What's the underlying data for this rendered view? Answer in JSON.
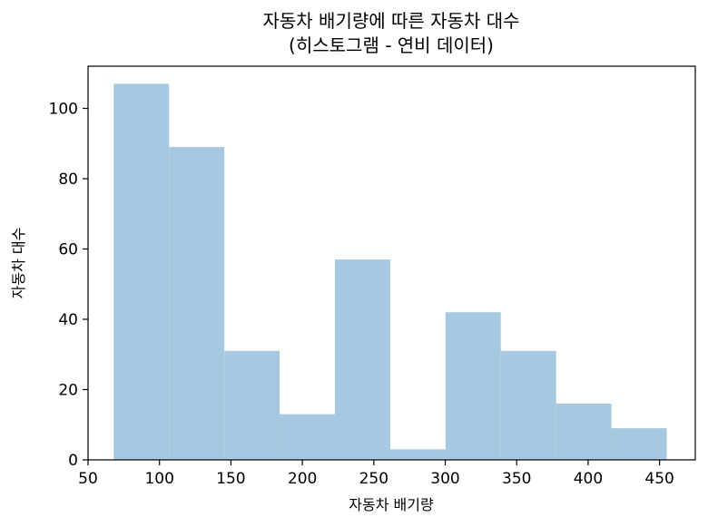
{
  "chart_data": {
    "type": "bar",
    "subtype": "histogram",
    "title_line1": "자동차 배기량에 따른 자동차 대수",
    "title_line2": "(히스토그램 - 연비 데이터)",
    "xlabel": "자동차 배기량",
    "ylabel": "자동차 대수",
    "bin_edges": [
      68,
      106.7,
      145.4,
      184.1,
      222.8,
      261.5,
      300.2,
      338.9,
      377.6,
      416.3,
      455
    ],
    "counts": [
      107,
      89,
      31,
      13,
      57,
      3,
      42,
      31,
      16,
      9
    ],
    "bar_color": "#a6c8e0",
    "xlim": [
      50,
      475
    ],
    "ylim": [
      0,
      112
    ],
    "xticks": [
      50,
      100,
      150,
      200,
      250,
      300,
      350,
      400,
      450
    ],
    "yticks": [
      0,
      20,
      40,
      60,
      80,
      100
    ],
    "grid": false,
    "legend": "none"
  }
}
